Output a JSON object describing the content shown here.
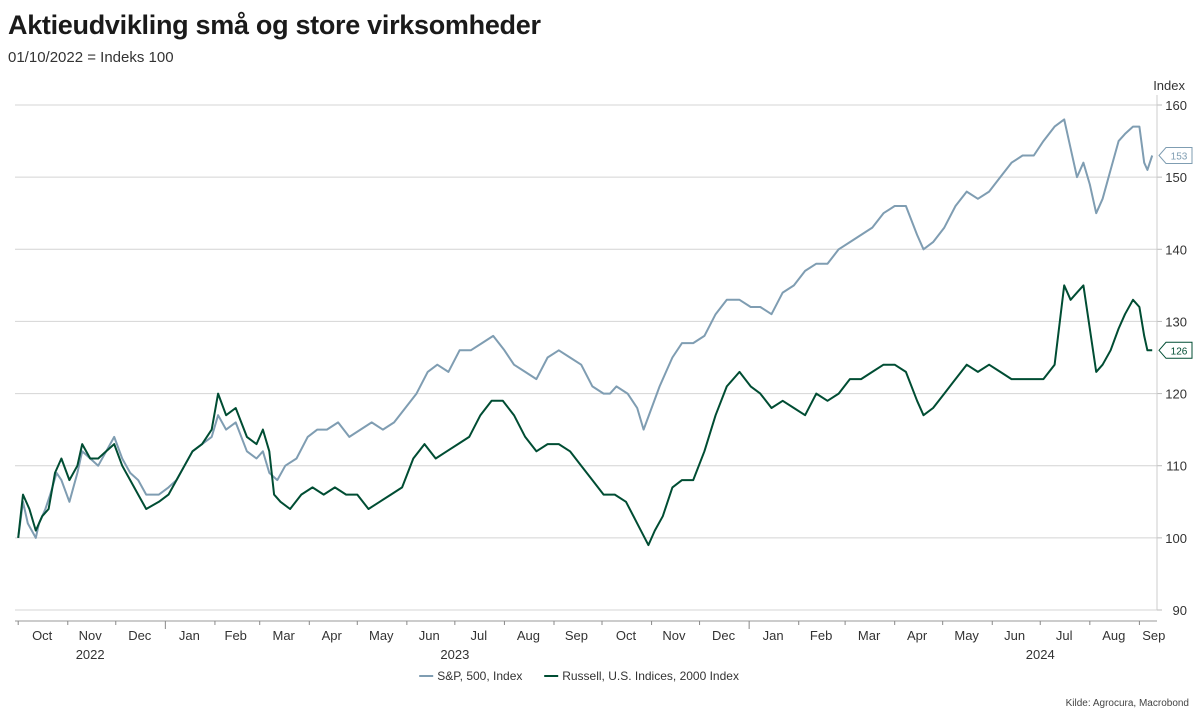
{
  "title": "Aktieudvikling små og store virksomheder",
  "subtitle": "01/10/2022 = Indeks 100",
  "source": "Kilde: Agrocura, Macrobond",
  "chart_data": {
    "type": "line",
    "title": "Aktieudvikling små og store virksomheder",
    "subtitle": "01/10/2022 = Indeks 100",
    "ylabel": "Index",
    "ylim": [
      90,
      160
    ],
    "yticks": [
      90,
      100,
      110,
      120,
      130,
      140,
      150,
      160
    ],
    "xlim": [
      "2022-09-29",
      "2024-09-12"
    ],
    "x_month_labels": [
      {
        "date": "2022-10-16",
        "label": "Oct"
      },
      {
        "date": "2022-11-15",
        "label": "Nov"
      },
      {
        "date": "2022-12-16",
        "label": "Dec"
      },
      {
        "date": "2023-01-16",
        "label": "Jan"
      },
      {
        "date": "2023-02-14",
        "label": "Feb"
      },
      {
        "date": "2023-03-16",
        "label": "Mar"
      },
      {
        "date": "2023-04-15",
        "label": "Apr"
      },
      {
        "date": "2023-05-16",
        "label": "May"
      },
      {
        "date": "2023-06-15",
        "label": "Jun"
      },
      {
        "date": "2023-07-16",
        "label": "Jul"
      },
      {
        "date": "2023-08-16",
        "label": "Aug"
      },
      {
        "date": "2023-09-15",
        "label": "Sep"
      },
      {
        "date": "2023-10-16",
        "label": "Oct"
      },
      {
        "date": "2023-11-15",
        "label": "Nov"
      },
      {
        "date": "2023-12-16",
        "label": "Dec"
      },
      {
        "date": "2024-01-16",
        "label": "Jan"
      },
      {
        "date": "2024-02-15",
        "label": "Feb"
      },
      {
        "date": "2024-03-16",
        "label": "Mar"
      },
      {
        "date": "2024-04-15",
        "label": "Apr"
      },
      {
        "date": "2024-05-16",
        "label": "May"
      },
      {
        "date": "2024-06-15",
        "label": "Jun"
      },
      {
        "date": "2024-07-16",
        "label": "Jul"
      },
      {
        "date": "2024-08-16",
        "label": "Aug"
      },
      {
        "date": "2024-09-10",
        "label": "Sep"
      }
    ],
    "x_year_labels": [
      {
        "date": "2022-11-15",
        "label": "2022"
      },
      {
        "date": "2023-07-01",
        "label": "2023"
      },
      {
        "date": "2024-07-01",
        "label": "2024"
      }
    ],
    "legend": "bottom",
    "series": [
      {
        "name": "S&P, 500, Index",
        "color": "#7f9db2",
        "last_label": "153",
        "points": [
          [
            "2022-10-01",
            100
          ],
          [
            "2022-10-04",
            105
          ],
          [
            "2022-10-07",
            102
          ],
          [
            "2022-10-12",
            100
          ],
          [
            "2022-10-14",
            102
          ],
          [
            "2022-10-18",
            104
          ],
          [
            "2022-10-21",
            106
          ],
          [
            "2022-10-25",
            109
          ],
          [
            "2022-10-28",
            108
          ],
          [
            "2022-11-02",
            105
          ],
          [
            "2022-11-07",
            109
          ],
          [
            "2022-11-10",
            112
          ],
          [
            "2022-11-15",
            111
          ],
          [
            "2022-11-20",
            110
          ],
          [
            "2022-11-25",
            112
          ],
          [
            "2022-11-30",
            114
          ],
          [
            "2022-12-05",
            111
          ],
          [
            "2022-12-10",
            109
          ],
          [
            "2022-12-15",
            108
          ],
          [
            "2022-12-20",
            106
          ],
          [
            "2022-12-28",
            106
          ],
          [
            "2023-01-03",
            107
          ],
          [
            "2023-01-08",
            108
          ],
          [
            "2023-01-13",
            110
          ],
          [
            "2023-01-18",
            112
          ],
          [
            "2023-01-24",
            113
          ],
          [
            "2023-01-30",
            114
          ],
          [
            "2023-02-03",
            117
          ],
          [
            "2023-02-08",
            115
          ],
          [
            "2023-02-14",
            116
          ],
          [
            "2023-02-21",
            112
          ],
          [
            "2023-02-27",
            111
          ],
          [
            "2023-03-03",
            112
          ],
          [
            "2023-03-07",
            109
          ],
          [
            "2023-03-12",
            108
          ],
          [
            "2023-03-17",
            110
          ],
          [
            "2023-03-24",
            111
          ],
          [
            "2023-03-31",
            114
          ],
          [
            "2023-04-06",
            115
          ],
          [
            "2023-04-12",
            115
          ],
          [
            "2023-04-19",
            116
          ],
          [
            "2023-04-26",
            114
          ],
          [
            "2023-05-03",
            115
          ],
          [
            "2023-05-10",
            116
          ],
          [
            "2023-05-17",
            115
          ],
          [
            "2023-05-24",
            116
          ],
          [
            "2023-05-31",
            118
          ],
          [
            "2023-06-07",
            120
          ],
          [
            "2023-06-14",
            123
          ],
          [
            "2023-06-20",
            124
          ],
          [
            "2023-06-27",
            123
          ],
          [
            "2023-07-04",
            126
          ],
          [
            "2023-07-11",
            126
          ],
          [
            "2023-07-18",
            127
          ],
          [
            "2023-07-25",
            128
          ],
          [
            "2023-08-01",
            126
          ],
          [
            "2023-08-07",
            124
          ],
          [
            "2023-08-14",
            123
          ],
          [
            "2023-08-21",
            122
          ],
          [
            "2023-08-28",
            125
          ],
          [
            "2023-09-04",
            126
          ],
          [
            "2023-09-11",
            125
          ],
          [
            "2023-09-18",
            124
          ],
          [
            "2023-09-25",
            121
          ],
          [
            "2023-10-02",
            120
          ],
          [
            "2023-10-06",
            120
          ],
          [
            "2023-10-10",
            121
          ],
          [
            "2023-10-17",
            120
          ],
          [
            "2023-10-23",
            118
          ],
          [
            "2023-10-27",
            115
          ],
          [
            "2023-11-01",
            118
          ],
          [
            "2023-11-06",
            121
          ],
          [
            "2023-11-10",
            123
          ],
          [
            "2023-11-14",
            125
          ],
          [
            "2023-11-20",
            127
          ],
          [
            "2023-11-27",
            127
          ],
          [
            "2023-12-04",
            128
          ],
          [
            "2023-12-11",
            131
          ],
          [
            "2023-12-18",
            133
          ],
          [
            "2023-12-26",
            133
          ],
          [
            "2024-01-02",
            132
          ],
          [
            "2024-01-08",
            132
          ],
          [
            "2024-01-15",
            131
          ],
          [
            "2024-01-22",
            134
          ],
          [
            "2024-01-29",
            135
          ],
          [
            "2024-02-05",
            137
          ],
          [
            "2024-02-12",
            138
          ],
          [
            "2024-02-19",
            138
          ],
          [
            "2024-02-26",
            140
          ],
          [
            "2024-03-04",
            141
          ],
          [
            "2024-03-11",
            142
          ],
          [
            "2024-03-18",
            143
          ],
          [
            "2024-03-25",
            145
          ],
          [
            "2024-04-01",
            146
          ],
          [
            "2024-04-08",
            146
          ],
          [
            "2024-04-15",
            142
          ],
          [
            "2024-04-19",
            140
          ],
          [
            "2024-04-25",
            141
          ],
          [
            "2024-05-02",
            143
          ],
          [
            "2024-05-09",
            146
          ],
          [
            "2024-05-16",
            148
          ],
          [
            "2024-05-23",
            147
          ],
          [
            "2024-05-30",
            148
          ],
          [
            "2024-06-06",
            150
          ],
          [
            "2024-06-13",
            152
          ],
          [
            "2024-06-20",
            153
          ],
          [
            "2024-06-27",
            153
          ],
          [
            "2024-07-03",
            155
          ],
          [
            "2024-07-10",
            157
          ],
          [
            "2024-07-16",
            158
          ],
          [
            "2024-07-20",
            154
          ],
          [
            "2024-07-24",
            150
          ],
          [
            "2024-07-28",
            152
          ],
          [
            "2024-08-01",
            149
          ],
          [
            "2024-08-05",
            145
          ],
          [
            "2024-08-09",
            147
          ],
          [
            "2024-08-14",
            151
          ],
          [
            "2024-08-19",
            155
          ],
          [
            "2024-08-23",
            156
          ],
          [
            "2024-08-28",
            157
          ],
          [
            "2024-09-01",
            157
          ],
          [
            "2024-09-04",
            152
          ],
          [
            "2024-09-06",
            151
          ],
          [
            "2024-09-09",
            153
          ]
        ]
      },
      {
        "name": "Russell, U.S. Indices, 2000 Index",
        "color": "#004d33",
        "last_label": "126",
        "points": [
          [
            "2022-10-01",
            100
          ],
          [
            "2022-10-04",
            106
          ],
          [
            "2022-10-08",
            104
          ],
          [
            "2022-10-12",
            101
          ],
          [
            "2022-10-16",
            103
          ],
          [
            "2022-10-20",
            104
          ],
          [
            "2022-10-24",
            109
          ],
          [
            "2022-10-28",
            111
          ],
          [
            "2022-11-02",
            108
          ],
          [
            "2022-11-07",
            110
          ],
          [
            "2022-11-10",
            113
          ],
          [
            "2022-11-15",
            111
          ],
          [
            "2022-11-20",
            111
          ],
          [
            "2022-11-25",
            112
          ],
          [
            "2022-11-30",
            113
          ],
          [
            "2022-12-05",
            110
          ],
          [
            "2022-12-10",
            108
          ],
          [
            "2022-12-15",
            106
          ],
          [
            "2022-12-20",
            104
          ],
          [
            "2022-12-28",
            105
          ],
          [
            "2023-01-03",
            106
          ],
          [
            "2023-01-08",
            108
          ],
          [
            "2023-01-13",
            110
          ],
          [
            "2023-01-18",
            112
          ],
          [
            "2023-01-24",
            113
          ],
          [
            "2023-01-30",
            115
          ],
          [
            "2023-02-03",
            120
          ],
          [
            "2023-02-08",
            117
          ],
          [
            "2023-02-14",
            118
          ],
          [
            "2023-02-21",
            114
          ],
          [
            "2023-02-27",
            113
          ],
          [
            "2023-03-03",
            115
          ],
          [
            "2023-03-07",
            112
          ],
          [
            "2023-03-10",
            106
          ],
          [
            "2023-03-14",
            105
          ],
          [
            "2023-03-20",
            104
          ],
          [
            "2023-03-27",
            106
          ],
          [
            "2023-04-03",
            107
          ],
          [
            "2023-04-10",
            106
          ],
          [
            "2023-04-17",
            107
          ],
          [
            "2023-04-24",
            106
          ],
          [
            "2023-05-01",
            106
          ],
          [
            "2023-05-08",
            104
          ],
          [
            "2023-05-15",
            105
          ],
          [
            "2023-05-22",
            106
          ],
          [
            "2023-05-29",
            107
          ],
          [
            "2023-06-05",
            111
          ],
          [
            "2023-06-12",
            113
          ],
          [
            "2023-06-19",
            111
          ],
          [
            "2023-06-26",
            112
          ],
          [
            "2023-07-03",
            113
          ],
          [
            "2023-07-10",
            114
          ],
          [
            "2023-07-17",
            117
          ],
          [
            "2023-07-24",
            119
          ],
          [
            "2023-07-31",
            119
          ],
          [
            "2023-08-07",
            117
          ],
          [
            "2023-08-14",
            114
          ],
          [
            "2023-08-21",
            112
          ],
          [
            "2023-08-28",
            113
          ],
          [
            "2023-09-04",
            113
          ],
          [
            "2023-09-11",
            112
          ],
          [
            "2023-09-18",
            110
          ],
          [
            "2023-09-25",
            108
          ],
          [
            "2023-10-02",
            106
          ],
          [
            "2023-10-09",
            106
          ],
          [
            "2023-10-16",
            105
          ],
          [
            "2023-10-23",
            102
          ],
          [
            "2023-10-30",
            99
          ],
          [
            "2023-11-03",
            101
          ],
          [
            "2023-11-08",
            103
          ],
          [
            "2023-11-14",
            107
          ],
          [
            "2023-11-20",
            108
          ],
          [
            "2023-11-27",
            108
          ],
          [
            "2023-12-04",
            112
          ],
          [
            "2023-12-11",
            117
          ],
          [
            "2023-12-18",
            121
          ],
          [
            "2023-12-26",
            123
          ],
          [
            "2024-01-02",
            121
          ],
          [
            "2024-01-08",
            120
          ],
          [
            "2024-01-15",
            118
          ],
          [
            "2024-01-22",
            119
          ],
          [
            "2024-01-29",
            118
          ],
          [
            "2024-02-05",
            117
          ],
          [
            "2024-02-12",
            120
          ],
          [
            "2024-02-19",
            119
          ],
          [
            "2024-02-26",
            120
          ],
          [
            "2024-03-04",
            122
          ],
          [
            "2024-03-11",
            122
          ],
          [
            "2024-03-18",
            123
          ],
          [
            "2024-03-25",
            124
          ],
          [
            "2024-04-01",
            124
          ],
          [
            "2024-04-08",
            123
          ],
          [
            "2024-04-15",
            119
          ],
          [
            "2024-04-19",
            117
          ],
          [
            "2024-04-25",
            118
          ],
          [
            "2024-05-02",
            120
          ],
          [
            "2024-05-09",
            122
          ],
          [
            "2024-05-16",
            124
          ],
          [
            "2024-05-23",
            123
          ],
          [
            "2024-05-30",
            124
          ],
          [
            "2024-06-06",
            123
          ],
          [
            "2024-06-13",
            122
          ],
          [
            "2024-06-20",
            122
          ],
          [
            "2024-06-27",
            122
          ],
          [
            "2024-07-03",
            122
          ],
          [
            "2024-07-10",
            124
          ],
          [
            "2024-07-16",
            135
          ],
          [
            "2024-07-20",
            133
          ],
          [
            "2024-07-24",
            134
          ],
          [
            "2024-07-28",
            135
          ],
          [
            "2024-08-01",
            129
          ],
          [
            "2024-08-05",
            123
          ],
          [
            "2024-08-09",
            124
          ],
          [
            "2024-08-14",
            126
          ],
          [
            "2024-08-19",
            129
          ],
          [
            "2024-08-23",
            131
          ],
          [
            "2024-08-28",
            133
          ],
          [
            "2024-09-01",
            132
          ],
          [
            "2024-09-04",
            128
          ],
          [
            "2024-09-06",
            126
          ],
          [
            "2024-09-09",
            126
          ]
        ]
      }
    ]
  }
}
